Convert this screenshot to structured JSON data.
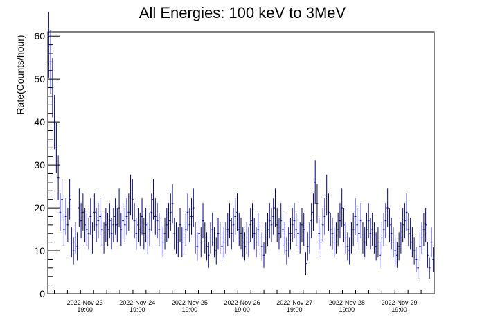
{
  "chart_data": {
    "type": "scatter",
    "title": "All Energies:  100 keV to 3MeV",
    "xlabel": "",
    "ylabel": "Rate(Counts/hour)",
    "ylim": [
      0,
      61
    ],
    "y_ticks": [
      0,
      10,
      20,
      30,
      40,
      50,
      60
    ],
    "x_ticks": [
      {
        "date": "2022-Nov-23",
        "time": "19:00",
        "hours": 8
      },
      {
        "date": "2022-Nov-24",
        "time": "19:00",
        "hours": 32
      },
      {
        "date": "2022-Nov-25",
        "time": "19:00",
        "hours": 56
      },
      {
        "date": "2022-Nov-26",
        "time": "19:00",
        "hours": 80
      },
      {
        "date": "2022-Nov-27",
        "time": "19:00",
        "hours": 104
      },
      {
        "date": "2022-Nov-28",
        "time": "19:00",
        "hours": 128
      },
      {
        "date": "2022-Nov-29",
        "time": "19:00",
        "hours": 152
      }
    ],
    "xlim": [
      -9,
      168
    ],
    "series_color": "#00007f",
    "values": [
      58,
      54,
      48,
      40,
      34,
      27,
      19,
      22,
      15,
      18,
      16,
      22,
      12,
      10,
      13,
      11,
      20,
      17,
      19,
      16,
      15,
      14,
      18,
      13,
      19,
      16,
      17,
      18,
      15,
      13,
      16,
      15,
      17,
      14,
      16,
      18,
      16,
      20,
      15,
      17,
      16,
      18,
      19,
      23,
      22,
      17,
      14,
      16,
      15,
      18,
      14,
      16,
      13,
      15,
      19,
      22,
      18,
      17,
      15,
      13,
      12,
      14,
      16,
      17,
      19,
      21,
      14,
      13,
      12,
      16,
      12,
      13,
      15,
      19,
      16,
      18,
      20,
      13,
      11,
      14,
      12,
      17,
      13,
      11,
      9,
      13,
      15,
      12,
      10,
      14,
      13,
      11,
      12,
      13,
      15,
      17,
      14,
      16,
      18,
      19,
      15,
      14,
      12,
      11,
      13,
      12,
      16,
      17,
      14,
      12,
      15,
      13,
      11,
      9,
      13,
      15,
      17,
      16,
      18,
      20,
      16,
      14,
      17,
      15,
      13,
      10,
      12,
      14,
      16,
      17,
      15,
      14,
      13,
      16,
      15,
      7,
      11,
      13,
      17,
      19,
      26,
      21,
      14,
      12,
      16,
      18,
      23,
      19,
      15,
      14,
      12,
      13,
      15,
      17,
      20,
      16,
      13,
      11,
      10,
      13,
      15,
      18,
      16,
      14,
      17,
      13,
      12,
      15,
      17,
      14,
      15,
      13,
      11,
      12,
      9,
      13,
      15,
      17,
      20,
      16,
      14,
      12,
      10,
      9,
      11,
      13,
      16,
      17,
      19,
      15,
      14,
      12,
      10,
      8,
      6,
      11,
      13,
      15,
      16,
      9,
      6,
      12,
      8
    ]
  }
}
